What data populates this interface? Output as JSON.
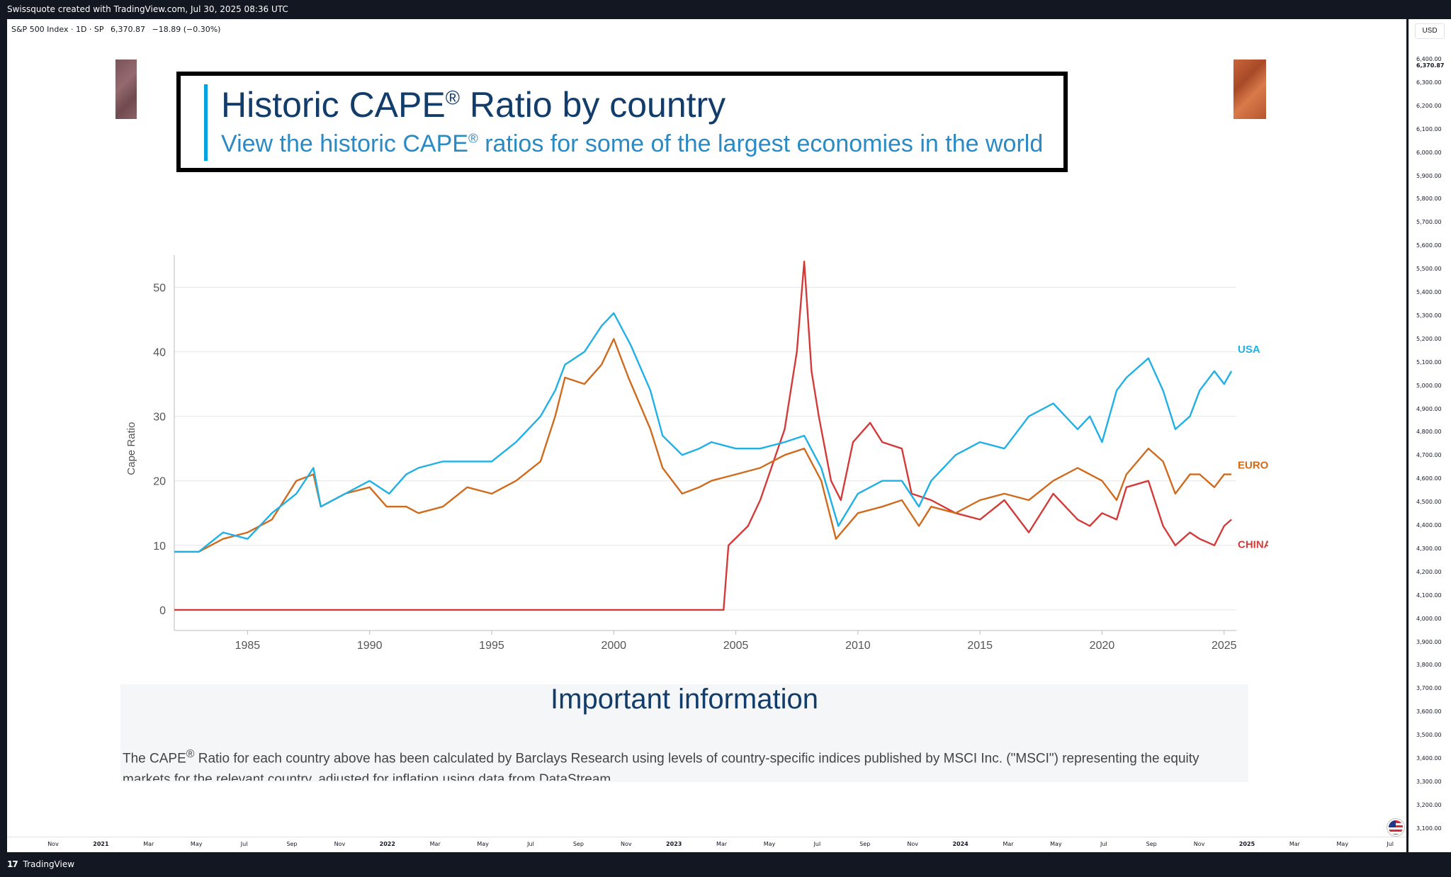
{
  "header": {
    "caption": "Swissquote created with TradingView.com, Jul 30, 2025 08:36 UTC"
  },
  "symbol": {
    "name": "S&P 500 Index · 1D · SP",
    "price": "6,370.87",
    "change": "−18.89 (−0.30%)"
  },
  "price_axis": {
    "currency": "USD",
    "ticks": [
      "6,400.00",
      "6,370.87",
      "6,300.00",
      "6,200.00",
      "6,100.00",
      "6,000.00",
      "5,900.00",
      "5,800.00",
      "5,700.00",
      "5,600.00",
      "5,500.00",
      "5,400.00",
      "5,300.00",
      "5,200.00",
      "5,100.00",
      "5,000.00",
      "4,900.00",
      "4,800.00",
      "4,700.00",
      "4,600.00",
      "4,500.00",
      "4,400.00",
      "4,300.00",
      "4,200.00",
      "4,100.00",
      "4,000.00",
      "3,900.00",
      "3,800.00",
      "3,700.00",
      "3,600.00",
      "3,500.00",
      "3,400.00",
      "3,300.00",
      "3,200.00",
      "3,100.00"
    ]
  },
  "time_axis": {
    "ticks": [
      "Nov",
      "2021",
      "Mar",
      "May",
      "Jul",
      "Sep",
      "Nov",
      "2022",
      "Mar",
      "May",
      "Jul",
      "Sep",
      "Nov",
      "2023",
      "Mar",
      "May",
      "Jul",
      "Sep",
      "Nov",
      "2024",
      "Mar",
      "May",
      "Jul",
      "Sep",
      "Nov",
      "2025",
      "Mar",
      "May",
      "Jul"
    ]
  },
  "footer": {
    "logo_mark": "17",
    "brand": "TradingView"
  },
  "image": {
    "title_main": "Historic CAPE",
    "title_reg": "®",
    "title_rest": " Ratio by country",
    "subtitle_main": "View the historic CAPE",
    "subtitle_reg": "®",
    "subtitle_rest": " ratios for some of the largest economies in the world",
    "info_title": "Important information",
    "info_text_a": "The CAPE",
    "info_text_reg": "®",
    "info_text_b": " Ratio for each country above has been calculated by Barclays Research using levels of country-specific indices published by MSCI Inc. (\"MSCI\") representing the equity markets for the relevant country, adjusted for inflation using data from DataStream."
  },
  "chart_data": {
    "type": "line",
    "title": "",
    "xlabel": "",
    "ylabel": "Cape Ratio",
    "xlim": [
      1982,
      2025.5
    ],
    "ylim": [
      0,
      55
    ],
    "x_ticks": [
      1985,
      1990,
      1995,
      2000,
      2005,
      2010,
      2015,
      2020,
      2025
    ],
    "y_ticks": [
      0,
      10,
      20,
      30,
      40,
      50
    ],
    "grid": true,
    "legend": "inline labels at line ends (right)",
    "series": [
      {
        "name": "USA",
        "color": "#1fb0e6",
        "x": [
          1982,
          1983,
          1984,
          1985,
          1986,
          1987,
          1987.7,
          1988,
          1989,
          1990,
          1990.8,
          1991.5,
          1992,
          1993,
          1994,
          1995,
          1996,
          1997,
          1997.6,
          1998,
          1998.8,
          1999.5,
          2000,
          2000.7,
          2001.5,
          2002,
          2002.8,
          2003.5,
          2004,
          2005,
          2006,
          2007,
          2007.8,
          2008.5,
          2009.2,
          2010,
          2011,
          2011.8,
          2012.5,
          2013,
          2014,
          2015,
          2016,
          2017,
          2018,
          2019,
          2019.5,
          2020,
          2020.6,
          2021,
          2021.9,
          2022.5,
          2023,
          2023.6,
          2024,
          2024.6,
          2025,
          2025.3
        ],
        "y": [
          9,
          9,
          12,
          11,
          15,
          18,
          22,
          16,
          18,
          20,
          18,
          21,
          22,
          23,
          23,
          23,
          26,
          30,
          34,
          38,
          40,
          44,
          46,
          41,
          34,
          27,
          24,
          25,
          26,
          25,
          25,
          26,
          27,
          22,
          13,
          18,
          20,
          20,
          16,
          20,
          24,
          26,
          25,
          30,
          32,
          28,
          30,
          26,
          34,
          36,
          39,
          34,
          28,
          30,
          34,
          37,
          35,
          37
        ]
      },
      {
        "name": "EUROPE",
        "color": "#d06b1e",
        "x": [
          1982,
          1983,
          1984,
          1985,
          1986,
          1987,
          1987.7,
          1988,
          1989,
          1990,
          1990.7,
          1991.5,
          1992,
          1993,
          1994,
          1995,
          1996,
          1997,
          1997.6,
          1998,
          1998.8,
          1999.5,
          2000,
          2000.6,
          2001.5,
          2002,
          2002.8,
          2003.5,
          2004,
          2005,
          2006,
          2007,
          2007.8,
          2008.5,
          2009.1,
          2010,
          2011,
          2011.8,
          2012.5,
          2013,
          2014,
          2015,
          2016,
          2017,
          2018,
          2019,
          2019.5,
          2020,
          2020.6,
          2021,
          2021.9,
          2022.5,
          2023,
          2023.6,
          2024,
          2024.6,
          2025,
          2025.3
        ],
        "y": [
          9,
          9,
          11,
          12,
          14,
          20,
          21,
          16,
          18,
          19,
          16,
          16,
          15,
          16,
          19,
          18,
          20,
          23,
          30,
          36,
          35,
          38,
          42,
          36,
          28,
          22,
          18,
          19,
          20,
          21,
          22,
          24,
          25,
          20,
          11,
          15,
          16,
          17,
          13,
          16,
          15,
          17,
          18,
          17,
          20,
          22,
          21,
          20,
          17,
          21,
          25,
          23,
          18,
          21,
          21,
          19,
          21,
          21
        ]
      },
      {
        "name": "CHINA",
        "color": "#d33a3a",
        "x": [
          1982,
          1990,
          2000,
          2004.5,
          2004.7,
          2005.5,
          2006,
          2007,
          2007.5,
          2007.8,
          2008.1,
          2008.4,
          2008.9,
          2009.3,
          2009.8,
          2010.5,
          2011,
          2011.8,
          2012.2,
          2013,
          2014,
          2015,
          2016,
          2017,
          2018,
          2019,
          2019.5,
          2020,
          2020.6,
          2021,
          2021.9,
          2022.5,
          2023,
          2023.6,
          2024,
          2024.6,
          2025,
          2025.3
        ],
        "y": [
          0,
          0,
          0,
          0,
          10,
          13,
          17,
          28,
          40,
          54,
          37,
          30,
          20,
          17,
          26,
          29,
          26,
          25,
          18,
          17,
          15,
          14,
          17,
          12,
          18,
          14,
          13,
          15,
          14,
          19,
          20,
          13,
          10,
          12,
          11,
          10,
          13,
          14
        ]
      }
    ]
  }
}
